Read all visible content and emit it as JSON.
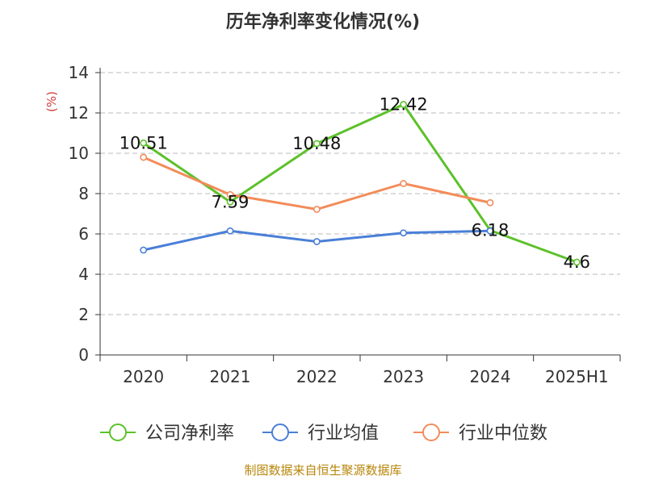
{
  "chart_data": {
    "type": "line",
    "title": "历年净利率变化情况(%)",
    "ylabel": "(%)",
    "categories": [
      "2020",
      "2021",
      "2022",
      "2023",
      "2024",
      "2025H1"
    ],
    "ylim": [
      0,
      14
    ],
    "yticks": [
      0,
      2,
      4,
      6,
      8,
      10,
      12,
      14
    ],
    "grid": true,
    "legend_position": "bottom",
    "series": [
      {
        "name": "公司净利率",
        "color": "#5cc12a",
        "values": [
          10.51,
          7.59,
          10.48,
          12.42,
          6.18,
          4.6
        ],
        "labels": [
          "10.51",
          "7.59",
          "10.48",
          "12.42",
          "6.18",
          "4.6"
        ],
        "show_labels": true
      },
      {
        "name": "行业均值",
        "color": "#4a7fd8",
        "values": [
          5.2,
          6.15,
          5.62,
          6.05,
          6.15,
          null
        ],
        "show_labels": false
      },
      {
        "name": "行业中位数",
        "color": "#f28c5a",
        "values": [
          9.8,
          7.95,
          7.22,
          8.5,
          7.55,
          null
        ],
        "show_labels": false
      }
    ]
  },
  "footer": {
    "source": "制图数据来自恒生聚源数据库"
  }
}
